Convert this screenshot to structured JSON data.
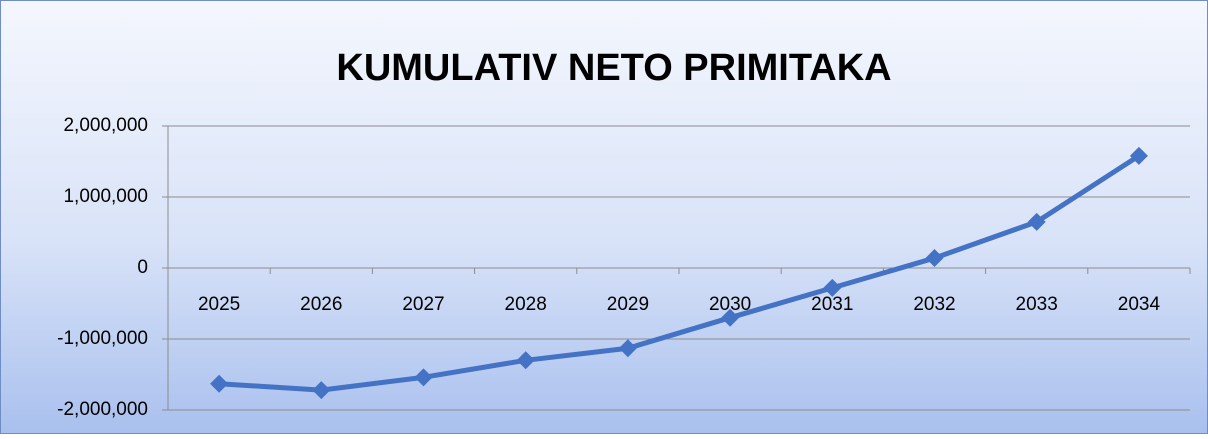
{
  "chart_data": {
    "type": "line",
    "title": "KUMULATIV NETO PRIMITAKA",
    "categories": [
      "2025",
      "2026",
      "2027",
      "2028",
      "2029",
      "2030",
      "2031",
      "2032",
      "2033",
      "2034"
    ],
    "values": [
      -1630000,
      -1720000,
      -1540000,
      -1300000,
      -1130000,
      -700000,
      -280000,
      140000,
      650000,
      1580000
    ],
    "color": "#4472c4",
    "ylim": [
      -2000000,
      2000000
    ],
    "yticks": [
      {
        "value": -2000000,
        "label": "-2,000,000"
      },
      {
        "value": -1000000,
        "label": "-1,000,000"
      },
      0,
      {
        "value": 1000000,
        "label": "1,000,000"
      },
      {
        "value": 2000000,
        "label": "2,000,000"
      }
    ],
    "grid": true
  }
}
